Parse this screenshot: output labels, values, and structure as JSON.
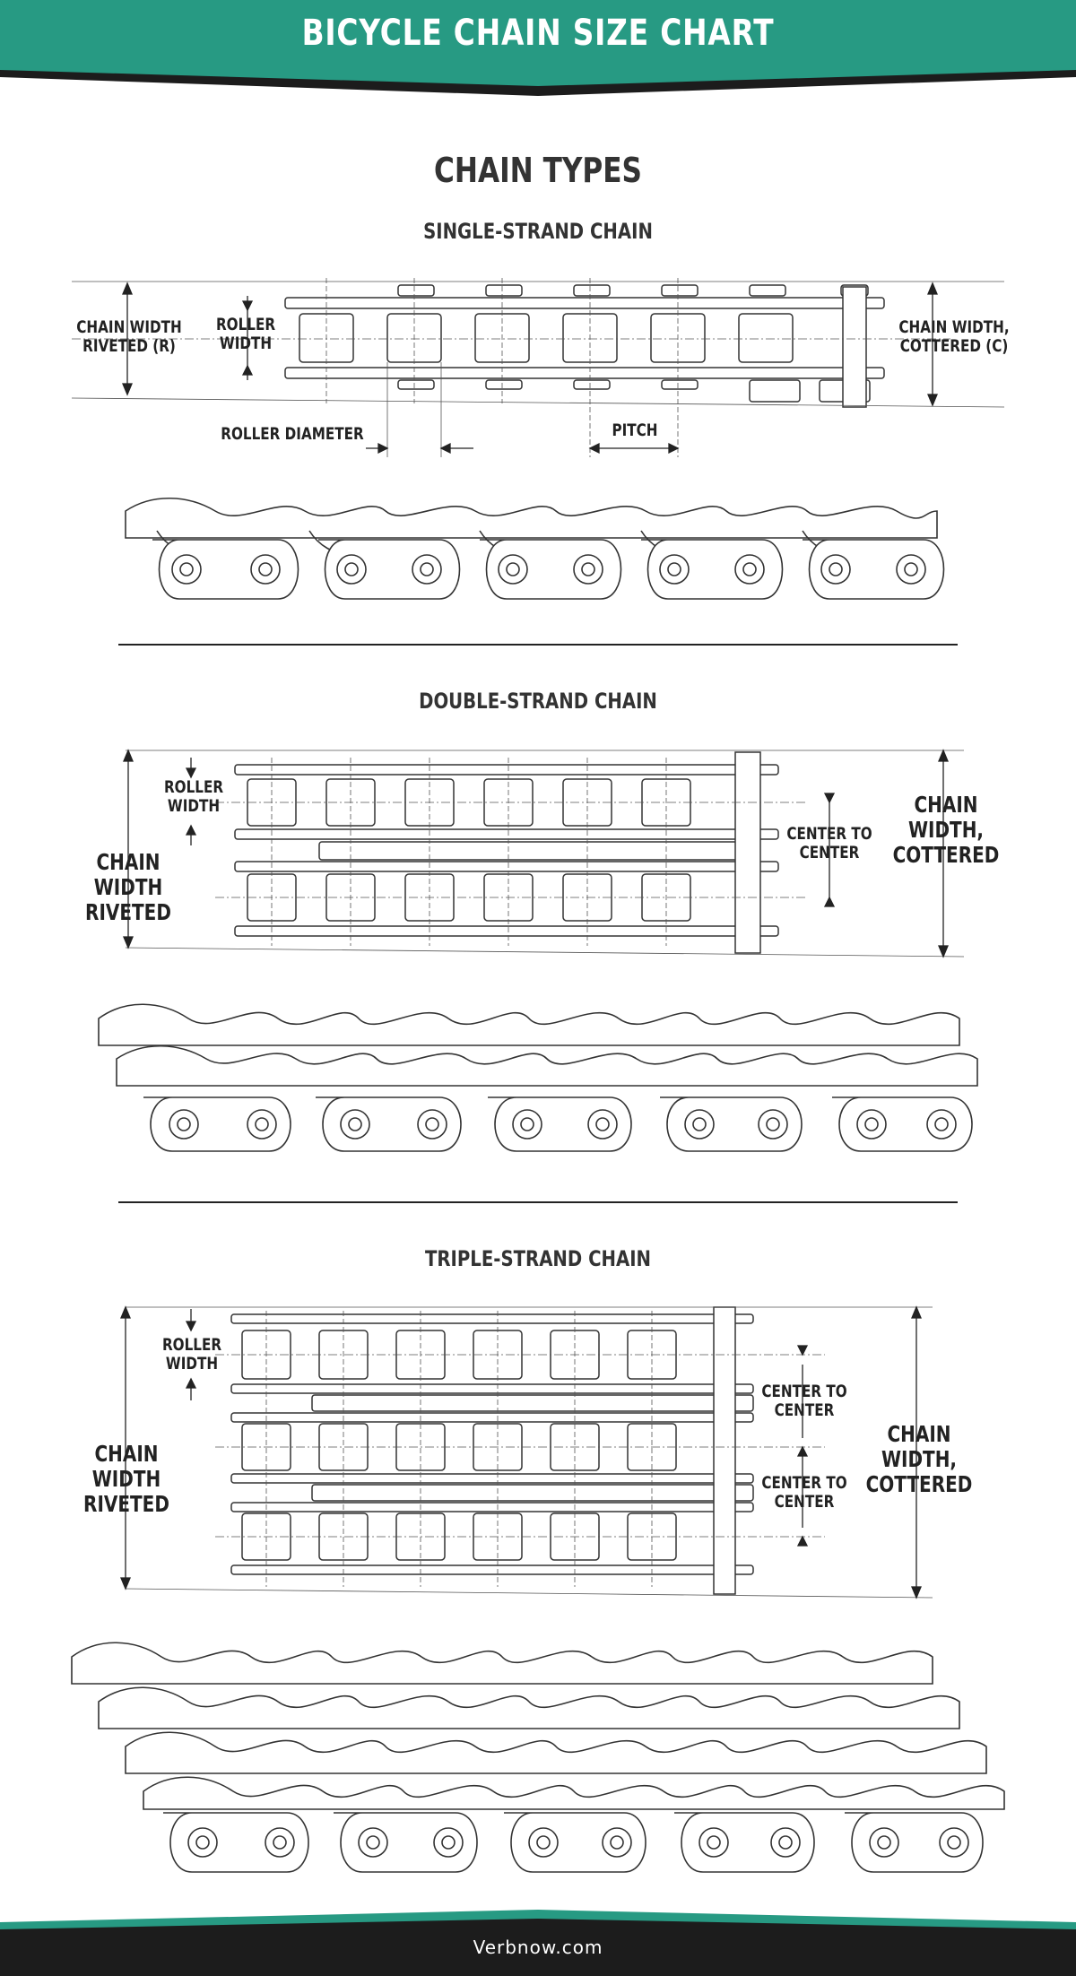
{
  "header": {
    "title": "BICYCLE CHAIN SIZE CHART",
    "banner_color": "#279a83",
    "shadow_color": "#1c1c1c"
  },
  "section_title": "CHAIN TYPES",
  "chains": {
    "single": {
      "heading": "SINGLE-STRAND CHAIN",
      "labels": {
        "width_riveted": "CHAIN WIDTH\nRIVETED (R)",
        "roller_width": "ROLLER\nWIDTH",
        "width_cottered": "CHAIN WIDTH,\nCOTTERED (C)",
        "roller_diameter": "ROLLER DIAMETER",
        "pitch": "PITCH"
      }
    },
    "double": {
      "heading": "DOUBLE-STRAND CHAIN",
      "labels": {
        "roller_width": "ROLLER\nWIDTH",
        "width_riveted": "CHAIN WIDTH\nRIVETED",
        "center_to_center": "CENTER TO\nCENTER",
        "width_cottered": "CHAIN WIDTH,\nCOTTERED"
      }
    },
    "triple": {
      "heading": "TRIPLE-STRAND CHAIN",
      "labels": {
        "roller_width": "ROLLER\nWIDTH",
        "width_riveted": "CHAIN WIDTH\nRIVETED",
        "center_to_center_1": "CENTER TO\nCENTER",
        "center_to_center_2": "CENTER TO\nCENTER",
        "width_cottered": "CHAIN WIDTH,\nCOTTERED"
      }
    }
  },
  "footer": {
    "site": "Verbnow.com",
    "background": "#1c1c1c",
    "accent": "#279a83"
  }
}
